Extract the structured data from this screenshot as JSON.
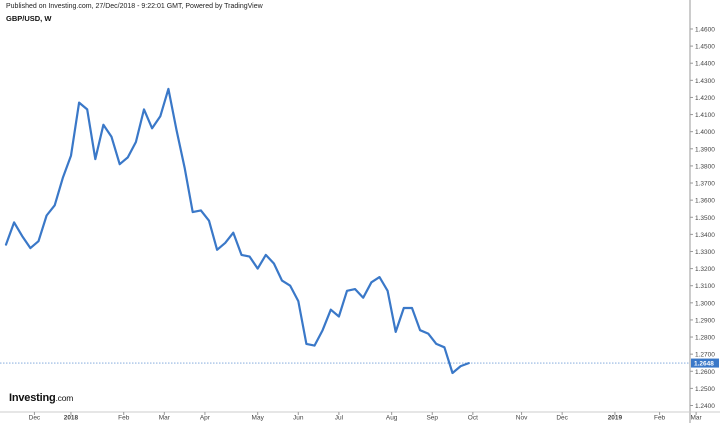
{
  "header": {
    "published": "Published on Investing.com, 27/Dec/2018 - 9:22:01 GMT, Powered by TradingView",
    "symbol": "GBP/USD, W"
  },
  "logo": {
    "name": "Investing",
    "suffix": ".com"
  },
  "colors": {
    "line": "#3a78c8",
    "price_label_bg": "#3a78c8",
    "axis": "#999999",
    "tick_text": "#444444"
  },
  "chart_data": {
    "type": "line",
    "title": "",
    "xlabel": "",
    "ylabel": "",
    "ylim": [
      1.235,
      1.46
    ],
    "y_ticks": [
      "1.4600",
      "1.4500",
      "1.4400",
      "1.4300",
      "1.4200",
      "1.4100",
      "1.4000",
      "1.3900",
      "1.3800",
      "1.3700",
      "1.3600",
      "1.3500",
      "1.3400",
      "1.3300",
      "1.3200",
      "1.3100",
      "1.3000",
      "1.2900",
      "1.2800",
      "1.2700",
      "1.2600",
      "1.2500",
      "1.2400"
    ],
    "x_ticks": [
      {
        "label": "Dec",
        "week": 3.5
      },
      {
        "label": "2018",
        "week": 8
      },
      {
        "label": "Feb",
        "week": 14.5
      },
      {
        "label": "Mar",
        "week": 19.5
      },
      {
        "label": "Apr",
        "week": 24.5
      },
      {
        "label": "May",
        "week": 31
      },
      {
        "label": "Jun",
        "week": 36
      },
      {
        "label": "Jul",
        "week": 41
      },
      {
        "label": "Aug",
        "week": 47.5
      },
      {
        "label": "Sep",
        "week": 52.5
      },
      {
        "label": "Oct",
        "week": 57.5
      },
      {
        "label": "Nov",
        "week": 63.5
      },
      {
        "label": "Dec",
        "week": 68.5
      },
      {
        "label": "2019",
        "week": 75
      },
      {
        "label": "Feb",
        "week": 80.5
      },
      {
        "label": "Mar",
        "week": 85
      }
    ],
    "x_range": [
      0,
      85
    ],
    "series": [
      {
        "values": [
          1.334,
          1.347,
          1.339,
          1.332,
          1.336,
          1.351,
          1.357,
          1.373,
          1.386,
          1.417,
          1.413,
          1.384,
          1.404,
          1.397,
          1.381,
          1.385,
          1.394,
          1.413,
          1.402,
          1.409,
          1.425,
          1.401,
          1.379,
          1.353,
          1.354,
          1.348,
          1.331,
          1.335,
          1.341,
          1.328,
          1.327,
          1.32,
          1.328,
          1.323,
          1.313,
          1.31,
          1.301,
          1.276,
          1.275,
          1.284,
          1.296,
          1.292,
          1.307,
          1.308,
          1.303,
          1.312,
          1.315,
          1.307,
          1.283,
          1.297,
          1.297,
          1.284,
          1.282,
          1.276,
          1.274,
          1.259,
          1.263,
          1.2648
        ]
      }
    ],
    "last_price": {
      "label": "1.2648",
      "value": 1.2648
    },
    "grid": false,
    "legend": "none"
  }
}
